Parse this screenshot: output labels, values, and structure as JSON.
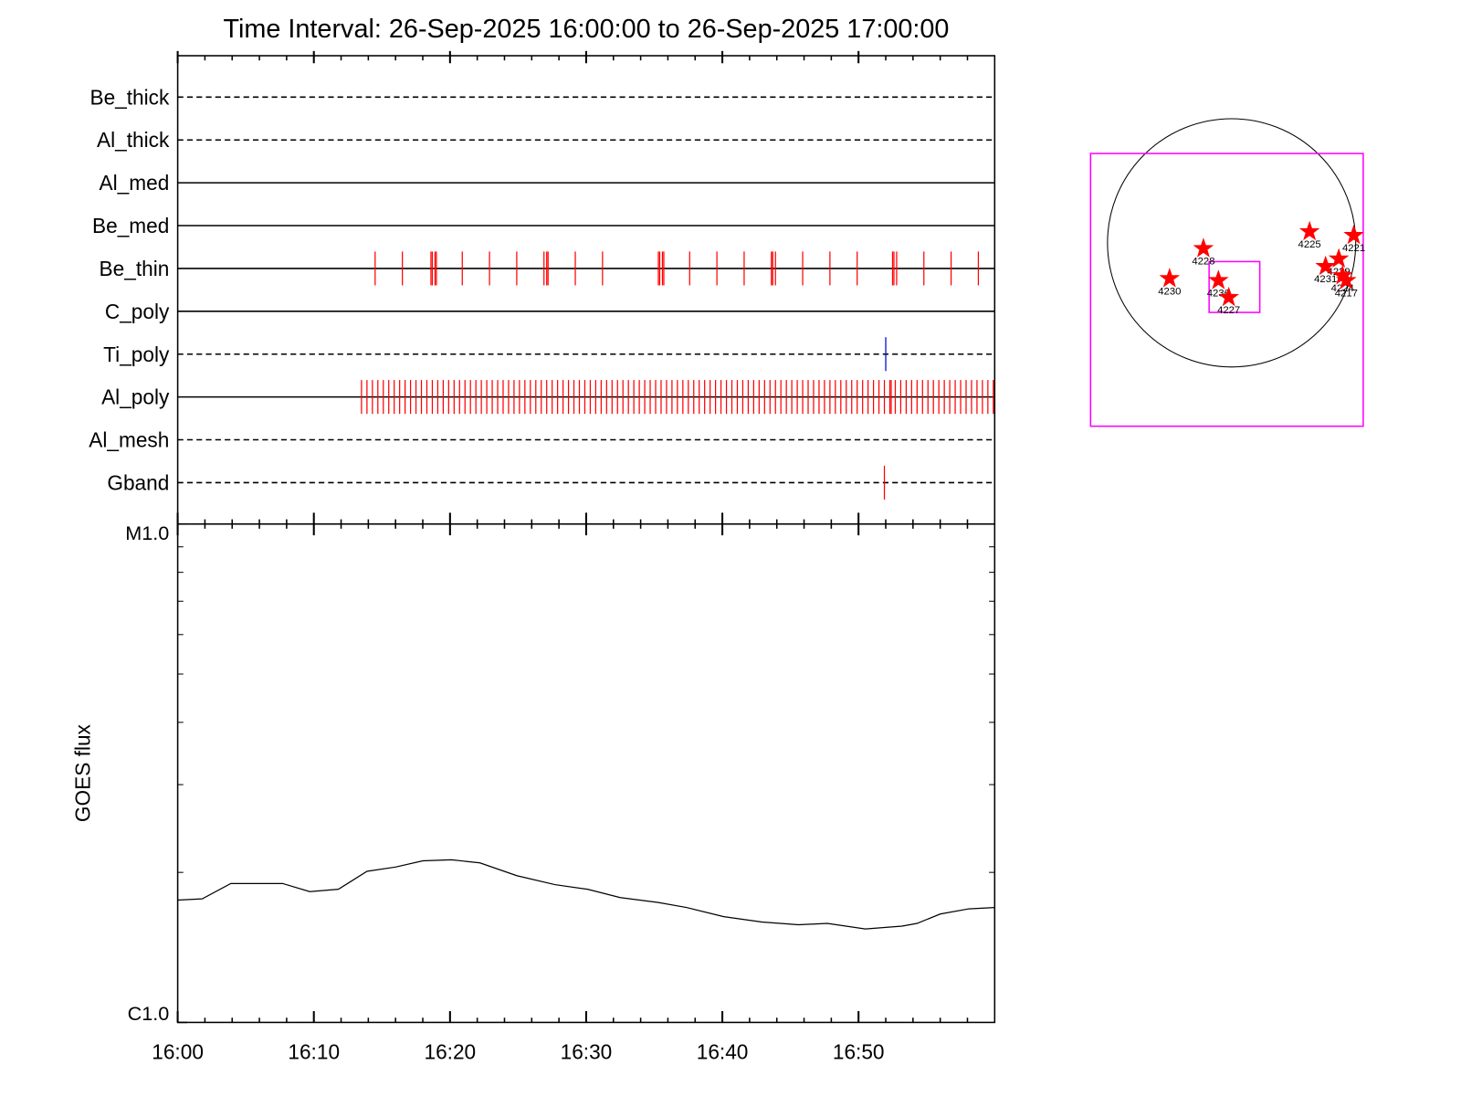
{
  "chart_data": [
    {
      "type": "events",
      "title": "Time Interval: 26-Sep-2025 16:00:00 to 26-Sep-2025 17:00:00",
      "xlim": [
        0,
        60
      ],
      "xticks": [
        0,
        10,
        20,
        30,
        40,
        50
      ],
      "xminorticks": [
        2,
        4,
        6,
        8,
        12,
        14,
        16,
        18,
        22,
        24,
        26,
        28,
        32,
        34,
        36,
        38,
        42,
        44,
        46,
        48,
        52,
        54,
        56,
        58
      ],
      "rows": [
        {
          "name": "Be_thick",
          "style": "dashed",
          "events": []
        },
        {
          "name": "Al_thick",
          "style": "dashed",
          "events": []
        },
        {
          "name": "Al_med",
          "style": "solid",
          "events": []
        },
        {
          "name": "Be_med",
          "style": "solid",
          "events": []
        },
        {
          "name": "Be_thin",
          "style": "solid",
          "color": "#ff0000",
          "events": [
            14.5,
            16.5,
            18.6,
            18.7,
            18.9,
            19.0,
            20.9,
            22.9,
            24.9,
            26.9,
            27.1,
            27.2,
            29.2,
            31.2,
            35.3,
            35.4,
            35.6,
            35.7,
            37.6,
            39.6,
            41.6,
            43.6,
            43.7,
            43.9,
            45.9,
            47.9,
            49.9,
            52.5,
            52.6,
            52.8,
            54.8,
            56.8,
            58.8
          ]
        },
        {
          "name": "C_poly",
          "style": "solid",
          "events": []
        },
        {
          "name": "Ti_poly",
          "style": "dashed",
          "color": "#0000cc",
          "events": [
            52.0
          ]
        },
        {
          "name": "Al_poly",
          "style": "solid",
          "color": "#ff0000",
          "events": [
            13.5,
            13.9,
            14.3,
            14.7,
            15.1,
            15.5,
            15.9,
            16.3,
            16.7,
            17.1,
            17.5,
            17.9,
            18.3,
            18.7,
            19.1,
            19.5,
            19.9,
            20.3,
            20.7,
            21.1,
            21.5,
            21.9,
            22.3,
            22.7,
            23.1,
            23.5,
            23.9,
            24.3,
            24.7,
            25.1,
            25.5,
            25.9,
            26.3,
            26.7,
            27.1,
            27.5,
            27.9,
            28.3,
            28.7,
            29.1,
            29.5,
            29.9,
            30.3,
            30.7,
            31.1,
            31.5,
            31.9,
            32.3,
            32.7,
            33.1,
            33.5,
            33.9,
            34.3,
            34.7,
            35.1,
            35.5,
            35.9,
            36.3,
            36.7,
            37.1,
            37.5,
            37.9,
            38.3,
            38.7,
            39.1,
            39.5,
            39.9,
            40.3,
            40.7,
            41.1,
            41.5,
            41.9,
            42.3,
            42.7,
            43.1,
            43.5,
            43.9,
            44.3,
            44.7,
            45.1,
            45.5,
            45.9,
            46.3,
            46.7,
            47.1,
            47.5,
            47.9,
            48.3,
            48.7,
            49.1,
            49.5,
            49.9,
            50.3,
            50.7,
            51.1,
            51.5,
            51.9,
            52.3,
            52.4,
            52.7,
            53.1,
            53.5,
            53.9,
            54.3,
            54.7,
            55.1,
            55.5,
            55.9,
            56.3,
            56.7,
            57.1,
            57.5,
            57.9,
            58.3,
            58.7,
            59.1,
            59.5,
            59.9
          ]
        },
        {
          "name": "Al_mesh",
          "style": "dashed",
          "events": []
        },
        {
          "name": "Gband",
          "style": "dashed",
          "color": "#ff0000",
          "events": [
            51.9
          ]
        }
      ]
    },
    {
      "type": "line",
      "ylabel": "GOES flux",
      "log_y": true,
      "color": "#000000",
      "xlim": [
        0,
        60
      ],
      "xticks": [
        {
          "value": 0,
          "label": "16:00"
        },
        {
          "value": 10,
          "label": "16:10"
        },
        {
          "value": 20,
          "label": "16:20"
        },
        {
          "value": 30,
          "label": "16:30"
        },
        {
          "value": 40,
          "label": "16:40"
        },
        {
          "value": 50,
          "label": "16:50"
        }
      ],
      "xminorticks": [
        2,
        4,
        6,
        8,
        12,
        14,
        16,
        18,
        22,
        24,
        26,
        28,
        32,
        34,
        36,
        38,
        42,
        44,
        46,
        48,
        52,
        54,
        56,
        58
      ],
      "ylim": [
        1e-06,
        1e-05
      ],
      "yticks": [
        {
          "value": 1e-06,
          "label": "C1.0"
        },
        {
          "value": 1e-05,
          "label": "M1.0"
        }
      ],
      "yminorticks": [
        2e-06,
        3e-06,
        4e-06,
        5e-06,
        6e-06,
        7e-06,
        8e-06,
        9e-06
      ],
      "x": [
        0,
        1.8,
        3.9,
        5.9,
        7.7,
        9.7,
        11.8,
        13.9,
        16.0,
        18.0,
        20.1,
        22.2,
        24.9,
        27.7,
        30.1,
        32.5,
        35.3,
        37.4,
        40.1,
        42.9,
        45.6,
        47.7,
        50.5,
        53.2,
        54.3,
        56.0,
        58.1,
        60.0
      ],
      "values": [
        1.76e-06,
        1.77e-06,
        1.9e-06,
        1.9e-06,
        1.9e-06,
        1.83e-06,
        1.85e-06,
        2.01e-06,
        2.05e-06,
        2.11e-06,
        2.12e-06,
        2.09e-06,
        1.97e-06,
        1.89e-06,
        1.85e-06,
        1.78e-06,
        1.74e-06,
        1.7e-06,
        1.63e-06,
        1.59e-06,
        1.57e-06,
        1.58e-06,
        1.54e-06,
        1.56e-06,
        1.58e-06,
        1.65e-06,
        1.69e-06,
        1.7e-06
      ]
    },
    {
      "type": "map",
      "limb_radius": 960,
      "box_color": "#ff00ff",
      "marker_color": "#ff0000",
      "boxes": [
        {
          "x": [
            -1091,
            1018
          ],
          "y": [
            -1418,
            691
          ]
        },
        {
          "x": [
            -174,
            218
          ],
          "y": [
            -538,
            -145
          ]
        }
      ],
      "points": [
        {
          "label": "4228",
          "x": -218,
          "y": -44
        },
        {
          "label": "4230",
          "x": -480,
          "y": -276
        },
        {
          "label": "4236",
          "x": -102,
          "y": -291
        },
        {
          "label": "4227",
          "x": -22,
          "y": -422
        },
        {
          "label": "4225",
          "x": 603,
          "y": 87
        },
        {
          "label": "4221",
          "x": 945,
          "y": 58
        },
        {
          "label": "4229",
          "x": 829,
          "y": -124
        },
        {
          "label": "4231",
          "x": 727,
          "y": -182
        },
        {
          "label": "4224",
          "x": 858,
          "y": -254
        },
        {
          "label": "4217",
          "x": 887,
          "y": -291
        }
      ]
    }
  ]
}
